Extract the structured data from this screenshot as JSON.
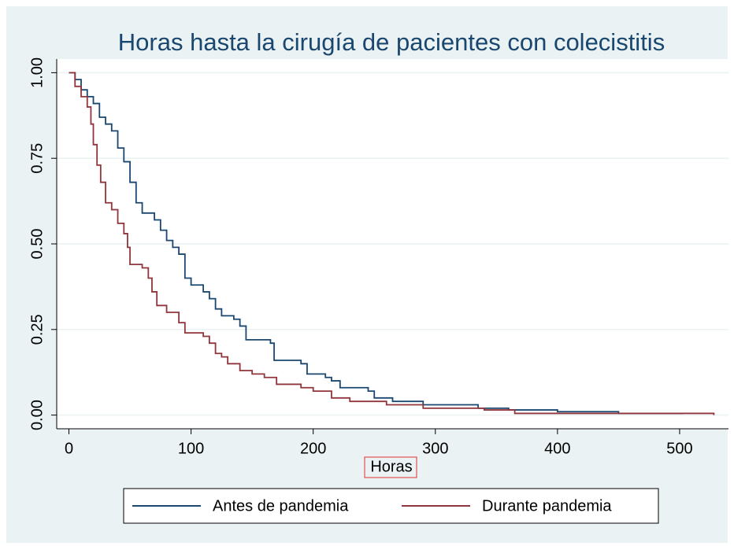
{
  "chart_data": {
    "type": "step",
    "title": "Horas hasta la cirugía de pacientes con colecistitis",
    "x_label": "Horas",
    "xlim": [
      -10,
      540
    ],
    "ylim": [
      -0.04,
      1.04
    ],
    "xticks": [
      0,
      100,
      200,
      300,
      400,
      500
    ],
    "yticks": [
      {
        "value": 0,
        "label": "0.00"
      },
      {
        "value": 0.25,
        "label": "0.25"
      },
      {
        "value": 0.5,
        "label": "0.50"
      },
      {
        "value": 0.75,
        "label": "0.75"
      },
      {
        "value": 1,
        "label": "1.00"
      }
    ],
    "grid": true,
    "series": [
      {
        "name": "Antes de pandemia",
        "color": "#1a476f",
        "x": [
          0,
          5,
          10,
          15,
          20,
          25,
          30,
          35,
          40,
          45,
          50,
          55,
          60,
          70,
          75,
          80,
          85,
          90,
          95,
          100,
          110,
          115,
          120,
          125,
          135,
          140,
          145,
          165,
          168,
          190,
          195,
          210,
          215,
          222,
          245,
          250,
          265,
          290,
          335,
          360,
          400,
          450,
          503
        ],
        "values": [
          1.0,
          0.98,
          0.95,
          0.93,
          0.91,
          0.87,
          0.85,
          0.83,
          0.78,
          0.74,
          0.68,
          0.62,
          0.59,
          0.57,
          0.54,
          0.51,
          0.49,
          0.47,
          0.4,
          0.38,
          0.36,
          0.34,
          0.31,
          0.29,
          0.28,
          0.26,
          0.22,
          0.21,
          0.16,
          0.15,
          0.12,
          0.11,
          0.1,
          0.08,
          0.07,
          0.05,
          0.04,
          0.03,
          0.02,
          0.015,
          0.01,
          0.005,
          0.005
        ]
      },
      {
        "name": "Durante pandemia",
        "color": "#90353b",
        "x": [
          0,
          5,
          10,
          15,
          18,
          20,
          23,
          26,
          30,
          35,
          40,
          45,
          48,
          50,
          60,
          65,
          68,
          72,
          80,
          90,
          95,
          110,
          115,
          120,
          125,
          130,
          140,
          150,
          160,
          170,
          190,
          200,
          215,
          230,
          260,
          290,
          340,
          365,
          528
        ],
        "values": [
          1.0,
          0.96,
          0.93,
          0.9,
          0.85,
          0.79,
          0.73,
          0.68,
          0.62,
          0.6,
          0.56,
          0.53,
          0.49,
          0.44,
          0.43,
          0.4,
          0.36,
          0.32,
          0.3,
          0.27,
          0.24,
          0.23,
          0.21,
          0.18,
          0.17,
          0.15,
          0.13,
          0.12,
          0.11,
          0.09,
          0.08,
          0.07,
          0.05,
          0.04,
          0.03,
          0.02,
          0.015,
          0.005,
          0
        ]
      }
    ]
  }
}
